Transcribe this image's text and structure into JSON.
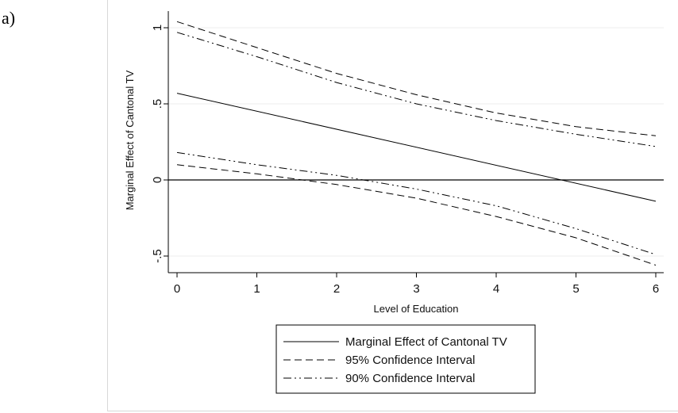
{
  "panel_label": "a)",
  "chart_data": {
    "type": "line",
    "title": "",
    "xlabel": "Level of Education",
    "ylabel": "Marginal Effect of Cantonal TV",
    "xlim": [
      0,
      6
    ],
    "ylim": [
      -0.6,
      1.1
    ],
    "x_ticks": [
      0,
      1,
      2,
      3,
      4,
      5,
      6
    ],
    "x_tick_labels": [
      "0",
      "1",
      "2",
      "3",
      "4",
      "5",
      "6"
    ],
    "y_ticks": [
      -0.5,
      0,
      0.5,
      1
    ],
    "y_tick_labels": [
      "-.5",
      "0",
      ".5",
      "1"
    ],
    "grid": "horizontal",
    "reference_line_y": 0,
    "legend_position": "bottom",
    "series": [
      {
        "name": "Marginal Effect of Cantonal TV",
        "style": "solid",
        "x": [
          0,
          6
        ],
        "y": [
          0.57,
          -0.14
        ]
      },
      {
        "name": "95% Confidence Interval",
        "style": "dash",
        "x": [
          0,
          1,
          2,
          3,
          4,
          5,
          6
        ],
        "y": [
          1.04,
          0.87,
          0.7,
          0.56,
          0.44,
          0.35,
          0.29
        ]
      },
      {
        "name": "95% Confidence Interval",
        "style": "dash",
        "x": [
          0,
          1,
          2,
          3,
          4,
          5,
          6
        ],
        "y": [
          0.1,
          0.04,
          -0.03,
          -0.12,
          -0.24,
          -0.38,
          -0.56
        ]
      },
      {
        "name": "90% Confidence Interval",
        "style": "dashdot",
        "x": [
          0,
          1,
          2,
          3,
          4,
          5,
          6
        ],
        "y": [
          0.97,
          0.81,
          0.64,
          0.5,
          0.39,
          0.3,
          0.22
        ]
      },
      {
        "name": "90% Confidence Interval",
        "style": "dashdot",
        "x": [
          0,
          1,
          2,
          3,
          4,
          5,
          6
        ],
        "y": [
          0.18,
          0.1,
          0.03,
          -0.06,
          -0.17,
          -0.32,
          -0.49
        ]
      }
    ],
    "legend": [
      {
        "label": "Marginal Effect of Cantonal TV",
        "style": "solid"
      },
      {
        "label": "95% Confidence Interval",
        "style": "dash"
      },
      {
        "label": "90% Confidence Interval",
        "style": "dashdot"
      }
    ]
  }
}
